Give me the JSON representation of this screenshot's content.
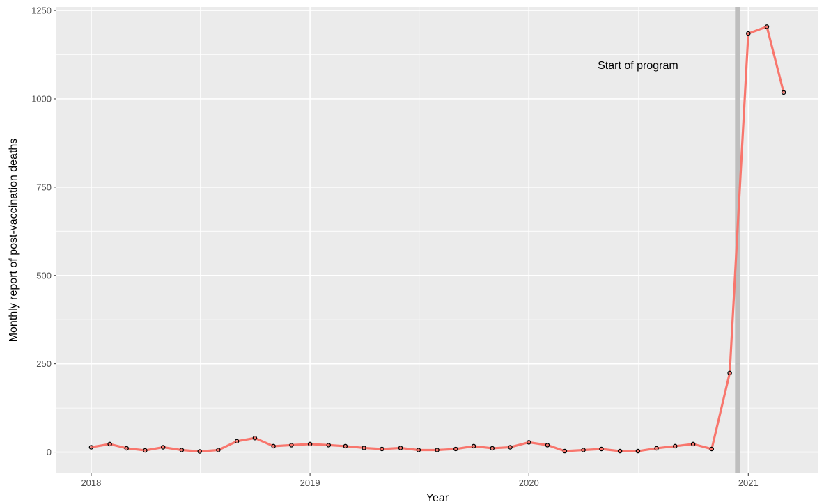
{
  "chart_data": {
    "type": "line",
    "title": "",
    "xlabel": "Year",
    "ylabel": "Monthly report of post-vaccination deaths",
    "x_ticks": [
      "2018",
      "2019",
      "2020",
      "2021"
    ],
    "y_ticks": [
      "0",
      "250",
      "500",
      "750",
      "1000",
      "1250"
    ],
    "ylim": [
      -60,
      1260
    ],
    "xlim": [
      "2017-11-04",
      "2021-04-28"
    ],
    "grid": true,
    "legend": "none",
    "line_color": "#F8766D",
    "vline": {
      "date": "2020-12-14",
      "color": "#BEBEBE"
    },
    "annotation": {
      "text": "Start of program",
      "date": "2020-07-01",
      "value": 1095
    },
    "series": [
      {
        "points": [
          [
            "2018-01-01",
            14
          ],
          [
            "2018-02-01",
            23
          ],
          [
            "2018-03-01",
            11
          ],
          [
            "2018-04-01",
            5
          ],
          [
            "2018-05-01",
            14
          ],
          [
            "2018-06-01",
            6
          ],
          [
            "2018-07-01",
            2
          ],
          [
            "2018-08-01",
            6
          ],
          [
            "2018-09-01",
            31
          ],
          [
            "2018-10-01",
            40
          ],
          [
            "2018-11-01",
            17
          ],
          [
            "2018-12-01",
            20
          ],
          [
            "2019-01-01",
            23
          ],
          [
            "2019-02-01",
            20
          ],
          [
            "2019-03-01",
            17
          ],
          [
            "2019-04-01",
            12
          ],
          [
            "2019-05-01",
            9
          ],
          [
            "2019-06-01",
            12
          ],
          [
            "2019-07-01",
            6
          ],
          [
            "2019-08-01",
            6
          ],
          [
            "2019-09-01",
            9
          ],
          [
            "2019-10-01",
            17
          ],
          [
            "2019-11-01",
            11
          ],
          [
            "2019-12-01",
            14
          ],
          [
            "2020-01-01",
            28
          ],
          [
            "2020-02-01",
            20
          ],
          [
            "2020-03-01",
            3
          ],
          [
            "2020-04-01",
            6
          ],
          [
            "2020-05-01",
            9
          ],
          [
            "2020-06-01",
            3
          ],
          [
            "2020-07-01",
            3
          ],
          [
            "2020-08-01",
            11
          ],
          [
            "2020-09-01",
            17
          ],
          [
            "2020-10-01",
            23
          ],
          [
            "2020-11-01",
            9
          ],
          [
            "2020-12-01",
            224
          ],
          [
            "2021-01-01",
            1185
          ],
          [
            "2021-02-01",
            1204
          ],
          [
            "2021-03-01",
            1018
          ]
        ]
      }
    ]
  }
}
